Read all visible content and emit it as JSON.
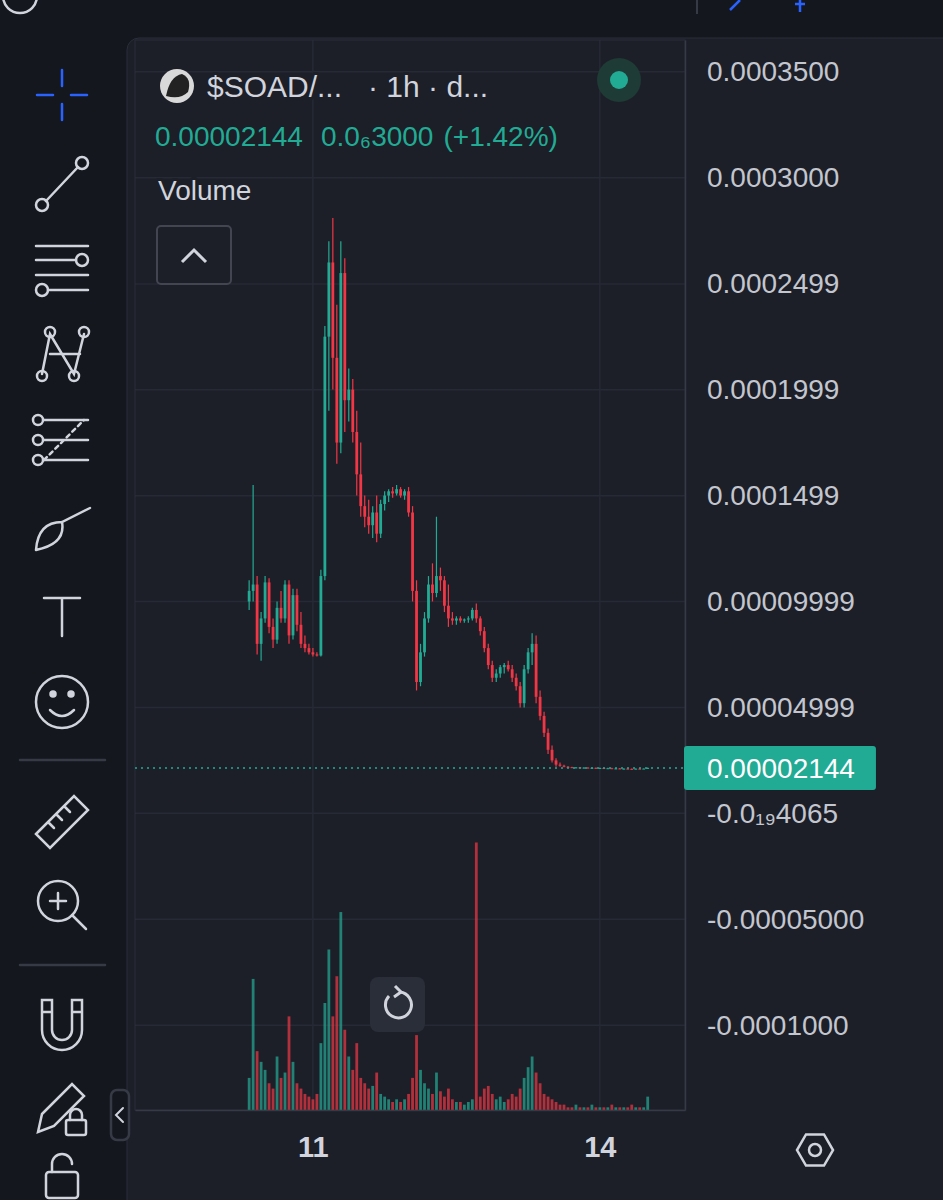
{
  "chart_data": {
    "type": "candlestick",
    "title": "$SOAD/...",
    "subtitle": "· 1h · d...",
    "annotations": [
      {
        "value": 2.144e-05,
        "label": "0.00002144"
      },
      {
        "value": 3e-07,
        "label": "0.0₆3000"
      },
      {
        "value": 1.42,
        "label": "(+1.42%)"
      },
      {
        "label": "Volume"
      }
    ],
    "x": [
      10.3333,
      10.375,
      10.4167,
      10.4583,
      10.5,
      10.5417,
      10.5833,
      10.625,
      10.6667,
      10.7083,
      10.75,
      10.7917,
      10.8333,
      10.875,
      10.9167,
      10.9583,
      11,
      11.0417,
      11.0833,
      11.125,
      11.1667,
      11.2083,
      11.25,
      11.2917,
      11.3333,
      11.375,
      11.4167,
      11.4583,
      11.5,
      11.5417,
      11.5833,
      11.625,
      11.6667,
      11.7083,
      11.75,
      11.7917,
      11.8333,
      11.875,
      11.9167,
      11.9583,
      12,
      12.0417,
      12.0833,
      12.125,
      12.1667,
      12.2083,
      12.25,
      12.2917,
      12.3333,
      12.375,
      12.4167,
      12.4583,
      12.5,
      12.5417,
      12.5833,
      12.625,
      12.6667,
      12.7083,
      12.75,
      12.7917,
      12.8333,
      12.875,
      12.9167,
      12.9583,
      13,
      13.0417,
      13.0833,
      13.125,
      13.1667,
      13.2083,
      13.25,
      13.2917,
      13.3333,
      13.375,
      13.4167,
      13.4583,
      13.5,
      13.5417,
      13.5833,
      13.625,
      13.6667,
      13.7083,
      13.75,
      13.7917,
      13.8333,
      13.875,
      13.9167,
      13.9583,
      14,
      14.0417,
      14.0833,
      14.125,
      14.1667,
      14.2083,
      14.25,
      14.2917,
      14.3333,
      14.375,
      14.4167,
      14.4583,
      14.5
    ],
    "open": [
      0.0001,
      0.000105,
      0.000108,
      8e-05,
      9.2e-05,
      0.000109,
      8.8e-05,
      8.2e-05,
      9.7e-05,
      9.2e-05,
      0.000108,
      8.4e-05,
      0.000103,
      8.9e-05,
      8e-05,
      7.8e-05,
      7.6e-05,
      7.5e-05,
      7.45e-05,
      0.000112,
      0.000225,
      0.00026,
      0.000215,
      0.000175,
      0.000255,
      0.000195,
      0.0002,
      0.00018,
      0.00016,
      0.000145,
      0.00014,
      0.000136,
      0.000142,
      0.000132,
      0.000146,
      0.00015,
      0.000152,
      0.000151,
      0.000153,
      0.00015,
      0.000152,
      0.000142,
      0.000105,
      6.2e-05,
      7.6e-05,
      9.2e-05,
      0.000108,
      0.000104,
      0.000112,
      0.00011,
      9.8e-05,
      9.2e-05,
      9.1e-05,
      9.2e-05,
      9.1e-05,
      9.15e-05,
      9.2e-05,
      9.6e-05,
      9.2e-05,
      8.6e-05,
      7.8e-05,
      7e-05,
      6.4e-05,
      6.6e-05,
      6.9e-05,
      7e-05,
      6.8e-05,
      6.4e-05,
      6e-05,
      5.2e-05,
      6.8e-05,
      7.6e-05,
      8e-05,
      5.5e-05,
      4.6e-05,
      3.8e-05,
      3e-05,
      2.5e-05,
      2.3e-05,
      2.25e-05,
      2.2e-05,
      2.18e-05,
      2.16e-05,
      2.17e-05,
      2.15e-05,
      2.16e-05,
      2.14e-05,
      2.15e-05,
      2.13e-05,
      2.14e-05,
      2.12e-05,
      2.13e-05,
      2.11e-05,
      2.12e-05,
      2.1e-05,
      2.11e-05,
      2.1e-05,
      2.09e-05,
      2.11e-05,
      2.1e-05,
      2.114e-05
    ],
    "high": [
      0.00011,
      0.000155,
      0.000112,
      9.5e-05,
      0.000112,
      0.000111,
      9.2e-05,
      0.0001,
      0.000105,
      0.00011,
      0.00011,
      0.000106,
      0.000106,
      9.5e-05,
      8.4e-05,
      8e-05,
      7.8e-05,
      7.6e-05,
      0.000115,
      0.00023,
      0.00027,
      0.000281,
      0.00024,
      0.00027,
      0.000262,
      0.00021,
      0.000205,
      0.00019,
      0.000175,
      0.00015,
      0.000148,
      0.000145,
      0.00015,
      0.000148,
      0.000152,
      0.000153,
      0.000154,
      0.000155,
      0.000154,
      0.000153,
      0.000154,
      0.000145,
      0.00011,
      8e-05,
      9.5e-05,
      0.000112,
      0.000118,
      0.00014,
      0.000116,
      0.000112,
      0.000108,
      9.5e-05,
      9.3e-05,
      9.3e-05,
      9.2e-05,
      9.3e-05,
      9.7e-05,
      9.9e-05,
      9.3e-05,
      8.8e-05,
      8e-05,
      7.2e-05,
      6.8e-05,
      7e-05,
      7.1e-05,
      7.2e-05,
      7e-05,
      6.6e-05,
      6.2e-05,
      7e-05,
      7.8e-05,
      8.5e-05,
      8.4e-05,
      5.8e-05,
      4.8e-05,
      4e-05,
      3.2e-05,
      2.6e-05,
      2.4e-05,
      2.3e-05,
      2.23e-05,
      2.2e-05,
      2.19e-05,
      2.19e-05,
      2.18e-05,
      2.18e-05,
      2.17e-05,
      2.17e-05,
      2.16e-05,
      2.16e-05,
      2.15e-05,
      2.15e-05,
      2.14e-05,
      2.14e-05,
      2.13e-05,
      2.13e-05,
      2.12e-05,
      2.12e-05,
      2.13e-05,
      2.12e-05,
      2.16e-05
    ],
    "low": [
      9.6e-05,
      0.0001,
      7.5e-05,
      7.2e-05,
      9e-05,
      8.5e-05,
      7.8e-05,
      8e-05,
      9e-05,
      9e-05,
      8e-05,
      8.2e-05,
      8.6e-05,
      7.8e-05,
      7.6e-05,
      7.5e-05,
      7.4e-05,
      7.4e-05,
      7.4e-05,
      0.00011,
      0.00019,
      0.0002,
      0.000165,
      0.00017,
      0.00018,
      0.000185,
      0.000175,
      0.00015,
      0.00014,
      0.000135,
      0.000132,
      0.00013,
      0.000128,
      0.00013,
      0.000143,
      0.000147,
      0.000149,
      0.00015,
      0.000149,
      0.000148,
      0.00014,
      0.0001,
      5.8e-05,
      6e-05,
      7.4e-05,
      9e-05,
      0.0001,
      0.000102,
      0.000105,
      9.5e-05,
      8.8e-05,
      8.9e-05,
      8.9e-05,
      9e-05,
      9e-05,
      9e-05,
      9.1e-05,
      9e-05,
      8.4e-05,
      7.6e-05,
      6.8e-05,
      6.2e-05,
      6.2e-05,
      6.4e-05,
      6.6e-05,
      6.7e-05,
      6.2e-05,
      5.8e-05,
      5e-05,
      5e-05,
      6.6e-05,
      7e-05,
      5.2e-05,
      4.4e-05,
      3.6e-05,
      2.8e-05,
      2.4e-05,
      2.2e-05,
      2.2e-05,
      2.18e-05,
      2.15e-05,
      2.14e-05,
      2.13e-05,
      2.14e-05,
      2.12e-05,
      2.13e-05,
      2.12e-05,
      2.11e-05,
      2.11e-05,
      2.1e-05,
      2.1e-05,
      2.1e-05,
      2.09e-05,
      2.09e-05,
      2.08e-05,
      2.09e-05,
      2.07e-05,
      2.08e-05,
      2.09e-05,
      2.09e-05,
      2.11e-05
    ],
    "close": [
      0.000105,
      0.000108,
      8e-05,
      9.2e-05,
      0.000109,
      8.8e-05,
      8.2e-05,
      9.7e-05,
      9.2e-05,
      0.000108,
      8.4e-05,
      0.000103,
      8.9e-05,
      8e-05,
      7.8e-05,
      7.6e-05,
      7.5e-05,
      7.45e-05,
      0.000112,
      0.000225,
      0.00026,
      0.000215,
      0.000175,
      0.000255,
      0.000195,
      0.0002,
      0.00018,
      0.00016,
      0.000145,
      0.00014,
      0.000136,
      0.000142,
      0.000132,
      0.000146,
      0.00015,
      0.000152,
      0.000151,
      0.000153,
      0.00015,
      0.000152,
      0.000142,
      0.000105,
      6.2e-05,
      7.6e-05,
      9.2e-05,
      0.000108,
      0.000104,
      0.000112,
      0.00011,
      9.8e-05,
      9.2e-05,
      9.1e-05,
      9.2e-05,
      9.1e-05,
      9.15e-05,
      9.2e-05,
      9.6e-05,
      9.2e-05,
      8.6e-05,
      7.8e-05,
      7e-05,
      6.4e-05,
      6.6e-05,
      6.9e-05,
      7e-05,
      6.8e-05,
      6.4e-05,
      6e-05,
      5.2e-05,
      6.8e-05,
      7.6e-05,
      8e-05,
      5.5e-05,
      4.6e-05,
      3.8e-05,
      3e-05,
      2.5e-05,
      2.3e-05,
      2.25e-05,
      2.2e-05,
      2.18e-05,
      2.16e-05,
      2.17e-05,
      2.15e-05,
      2.16e-05,
      2.14e-05,
      2.15e-05,
      2.13e-05,
      2.14e-05,
      2.12e-05,
      2.13e-05,
      2.11e-05,
      2.12e-05,
      2.1e-05,
      2.11e-05,
      2.1e-05,
      2.09e-05,
      2.11e-05,
      2.1e-05,
      2.114e-05,
      2.144e-05
    ],
    "volume": [
      12,
      49,
      22,
      18,
      15,
      10,
      8,
      20,
      12,
      14,
      35,
      18,
      10,
      8,
      6,
      5,
      4,
      6,
      25,
      40,
      60,
      35,
      50,
      74,
      30,
      20,
      15,
      25,
      12,
      10,
      8,
      9,
      14,
      6,
      5,
      4,
      3,
      4,
      3,
      4,
      6,
      12,
      28,
      15,
      10,
      8,
      6,
      14,
      7,
      5,
      8,
      4,
      3,
      3,
      2,
      3,
      4,
      100,
      5,
      8,
      9,
      6,
      4,
      5,
      3,
      4,
      6,
      5,
      8,
      12,
      16,
      20,
      14,
      10,
      6,
      5,
      4,
      3,
      2,
      2,
      1,
      1,
      2,
      1,
      1,
      1,
      2,
      1,
      1,
      1,
      1,
      2,
      1,
      1,
      1,
      1,
      2,
      1,
      1,
      1,
      5
    ],
    "xlim": [
      9.14,
      14.89
    ],
    "xticks": [
      11,
      14
    ],
    "ylim": [
      -0.00014,
      0.000365
    ],
    "yticks": [
      {
        "value": 0.00035,
        "label": "0.0003500"
      },
      {
        "value": 0.0003,
        "label": "0.0003000"
      },
      0.0002499,
      0.0001999,
      0.0001499,
      9.999e-05,
      4.999e-05,
      {
        "value": -4.065e-20,
        "label": "-0.0₁₉4065"
      },
      {
        "value": -5e-05,
        "label": "-0.00005000"
      },
      {
        "value": -0.0001,
        "label": "-0.0001000"
      }
    ],
    "y2lim": [
      0,
      400
    ],
    "last_price": {
      "value": 2.144e-05,
      "label": "0.00002144"
    },
    "grid": true
  }
}
